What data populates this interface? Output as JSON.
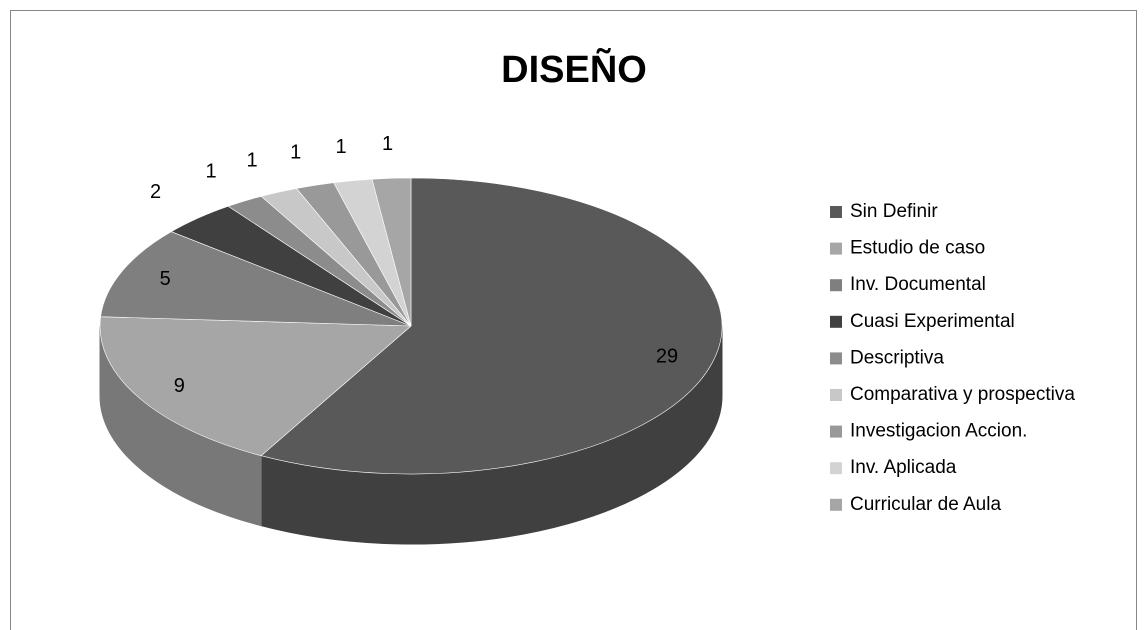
{
  "chart_data": {
    "type": "pie",
    "title": "DISEÑO",
    "categories": [
      "Sin Definir",
      "Estudio de caso",
      "Inv. Documental",
      "Cuasi Experimental",
      "Descriptiva",
      "Comparativa y prospectiva",
      "Investigacion Accion.",
      "Inv. Aplicada",
      "Curricular de Aula"
    ],
    "values": [
      29,
      9,
      5,
      2,
      1,
      1,
      1,
      1,
      1
    ],
    "colors": [
      "#595959",
      "#a6a6a6",
      "#7f7f7f",
      "#404040",
      "#8c8c8c",
      "#c8c8c8",
      "#999999",
      "#d3d3d3",
      "#a6a6a6"
    ],
    "legend": "right"
  }
}
